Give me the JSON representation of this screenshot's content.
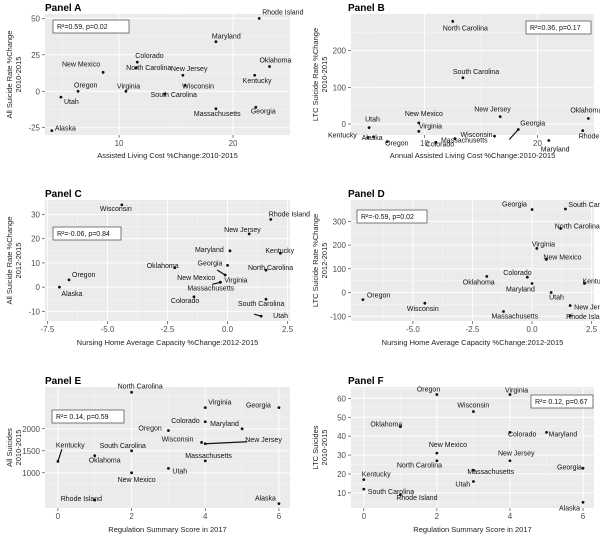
{
  "figure": {
    "background": "#ffffff",
    "panel_background": "#ebebeb",
    "point_color": "#111111"
  },
  "chart_data": [
    {
      "type": "scatter",
      "title": "Panel A",
      "xlabel": "Assisted Living Cost %Change:2010-2015",
      "ylabel": [
        "All Suicide Rate %Change",
        "2010-2015"
      ],
      "xlim": [
        3.5,
        25
      ],
      "ylim": [
        -30,
        53
      ],
      "xticks": [
        10,
        20
      ],
      "yticks": [
        -25,
        0,
        25,
        50
      ],
      "stat": "R²=0.59, p=0.02",
      "stat_side": "left",
      "points": [
        {
          "name": "Rhode Island",
          "x": 22.3,
          "y": 50
        },
        {
          "name": "Maryland",
          "x": 18.5,
          "y": 34
        },
        {
          "name": "Colorado",
          "x": 11.6,
          "y": 20
        },
        {
          "name": "New Mexico",
          "x": 8.6,
          "y": 13
        },
        {
          "name": "North Carolina",
          "x": 11.5,
          "y": 16
        },
        {
          "name": "Oklahoma",
          "x": 23.2,
          "y": 17
        },
        {
          "name": "New Jersey",
          "x": 15.6,
          "y": 11
        },
        {
          "name": "Kentucky",
          "x": 21.9,
          "y": 11
        },
        {
          "name": "Wisconsin",
          "x": 15.8,
          "y": 4
        },
        {
          "name": "Oregon",
          "x": 6.4,
          "y": 0
        },
        {
          "name": "Virginia",
          "x": 10.6,
          "y": 0
        },
        {
          "name": "Utah",
          "x": 4.9,
          "y": -4
        },
        {
          "name": "South Carolina",
          "x": 14.0,
          "y": -2
        },
        {
          "name": "Massachusetts",
          "x": 18.5,
          "y": -12
        },
        {
          "name": "Georgia",
          "x": 22.0,
          "y": -11
        },
        {
          "name": "Alaska",
          "x": 4.1,
          "y": -27
        }
      ]
    },
    {
      "type": "scatter",
      "title": "Panel B",
      "xlabel": "Annual Assisted Living Cost %Change:2010-2015",
      "ylabel": [
        "LTC Suicide Rate %Change",
        "2010-2015"
      ],
      "xlim": [
        3.5,
        25
      ],
      "ylim": [
        -30,
        300
      ],
      "xticks": [
        10,
        20
      ],
      "yticks": [
        0,
        100,
        200
      ],
      "stat": "R²=0.36, p=0.17",
      "stat_side": "right",
      "points": [
        {
          "name": "North Carolina",
          "x": 12.5,
          "y": 280
        },
        {
          "name": "South Carolina",
          "x": 13.4,
          "y": 126
        },
        {
          "name": "New Mexico",
          "x": 9.5,
          "y": 3
        },
        {
          "name": "New Jersey",
          "x": 16.7,
          "y": 20
        },
        {
          "name": "Oklahoma",
          "x": 24.5,
          "y": 15
        },
        {
          "name": "Utah",
          "x": 5.1,
          "y": -10
        },
        {
          "name": "Virginia",
          "x": 9.5,
          "y": -20
        },
        {
          "name": "Georgia",
          "x": 18.3,
          "y": -15
        },
        {
          "name": "Alaska",
          "x": 5.5,
          "y": -35
        },
        {
          "name": "Wisconsin",
          "x": 16.2,
          "y": -33
        },
        {
          "name": "Rhode Island",
          "x": 24.0,
          "y": -18
        },
        {
          "name": "Oregon",
          "x": 6.7,
          "y": -48
        },
        {
          "name": "Colorado",
          "x": 11.0,
          "y": -50
        },
        {
          "name": "Massachusetts",
          "x": 12.7,
          "y": -40
        },
        {
          "name": "Maryland",
          "x": 21.0,
          "y": -45
        },
        {
          "name": "Kentucky",
          "x": 5.0,
          "y": -37
        }
      ]
    },
    {
      "type": "scatter",
      "title": "Panel C",
      "xlabel": "Nursing Home Average Capacity %Change:2012-2015",
      "ylabel": [
        "All Suicide Rate %Change",
        "2012-2015"
      ],
      "xlim": [
        -7.6,
        2.6
      ],
      "ylim": [
        -14,
        36
      ],
      "xticks": [
        -7.5,
        -5.0,
        -2.5,
        0.0,
        2.5
      ],
      "tick_decimals": 1,
      "yticks": [
        -10,
        0,
        10,
        20,
        30
      ],
      "stat": "R²=-0.06, p=0.84",
      "stat_side": "left",
      "points": [
        {
          "name": "Wisconsin",
          "x": -4.4,
          "y": 34
        },
        {
          "name": "Rhode Island",
          "x": 1.8,
          "y": 28
        },
        {
          "name": "New Jersey",
          "x": 0.9,
          "y": 22
        },
        {
          "name": "Maryland",
          "x": 0.1,
          "y": 15
        },
        {
          "name": "Kentucky",
          "x": 2.2,
          "y": 14
        },
        {
          "name": "Oklahoma",
          "x": -2.2,
          "y": 8
        },
        {
          "name": "Georgia",
          "x": 0.0,
          "y": 9
        },
        {
          "name": "New Mexico",
          "x": -0.1,
          "y": 5
        },
        {
          "name": "North Carolina",
          "x": 1.6,
          "y": 7
        },
        {
          "name": "Virginia",
          "x": -0.3,
          "y": 2
        },
        {
          "name": "Massachusetts",
          "x": -0.3,
          "y": 2
        },
        {
          "name": "Oregon",
          "x": -6.6,
          "y": 3
        },
        {
          "name": "Alaska",
          "x": -7.0,
          "y": 0
        },
        {
          "name": "Colorado",
          "x": -1.4,
          "y": -4
        },
        {
          "name": "South Carolina",
          "x": 1.6,
          "y": -5
        },
        {
          "name": "Utah",
          "x": 1.4,
          "y": -12
        }
      ]
    },
    {
      "type": "scatter",
      "title": "Panel D",
      "xlabel": "Nursing Home Average Capacity %Change:2012-2015",
      "ylabel": [
        "LTC Suicide Rate %Change",
        "2012-2015"
      ],
      "xlim": [
        -7.6,
        2.6
      ],
      "ylim": [
        -120,
        390
      ],
      "xticks": [
        -5.0,
        -2.5,
        0.0,
        2.5
      ],
      "tick_decimals": 1,
      "yticks": [
        -100,
        0,
        100,
        200,
        300
      ],
      "stat": "R²=-0.59, p=0.02",
      "stat_side": "left",
      "points": [
        {
          "name": "Georgia",
          "x": 0.0,
          "y": 350
        },
        {
          "name": "South Carolina",
          "x": 1.4,
          "y": 352
        },
        {
          "name": "North Carolina",
          "x": 1.2,
          "y": 270
        },
        {
          "name": "Virginia",
          "x": 0.2,
          "y": 186
        },
        {
          "name": "New Mexico",
          "x": 0.6,
          "y": 140
        },
        {
          "name": "Oklahoma",
          "x": -1.9,
          "y": 68
        },
        {
          "name": "Colorado",
          "x": -0.2,
          "y": 65
        },
        {
          "name": "Maryland",
          "x": 0.0,
          "y": 38
        },
        {
          "name": "Kentucky",
          "x": 2.2,
          "y": 38
        },
        {
          "name": "Utah",
          "x": 0.8,
          "y": 0
        },
        {
          "name": "Oregon",
          "x": -7.1,
          "y": -30
        },
        {
          "name": "Wisconsin",
          "x": -4.5,
          "y": -45
        },
        {
          "name": "Massachusetts",
          "x": -1.2,
          "y": -80
        },
        {
          "name": "New Jersey",
          "x": 1.6,
          "y": -55
        },
        {
          "name": "Rhode Island",
          "x": 1.6,
          "y": -98
        }
      ]
    },
    {
      "type": "scatter",
      "title": "Panel E",
      "xlabel": "Regulation Summary Score in 2017",
      "ylabel": [
        "All Suicides",
        "2010-2015"
      ],
      "xlim": [
        -0.35,
        6.3
      ],
      "ylim": [
        200,
        2950
      ],
      "xticks": [
        0,
        2,
        4,
        6
      ],
      "yticks": [
        1000,
        1500,
        2000
      ],
      "stat": "R²= 0.14, p=0.59",
      "stat_side": "left",
      "points": [
        {
          "name": "North Carolina",
          "x": 2.0,
          "y": 2830
        },
        {
          "name": "Virginia",
          "x": 4.0,
          "y": 2480
        },
        {
          "name": "Georgia",
          "x": 6.0,
          "y": 2480
        },
        {
          "name": "Colorado",
          "x": 4.0,
          "y": 2160
        },
        {
          "name": "Maryland",
          "x": 5.0,
          "y": 2000
        },
        {
          "name": "Oregon",
          "x": 3.0,
          "y": 1960
        },
        {
          "name": "Wisconsin",
          "x": 3.9,
          "y": 1690
        },
        {
          "name": "New Jersey",
          "x": 4.0,
          "y": 1660
        },
        {
          "name": "Kentucky",
          "x": 0.0,
          "y": 1260
        },
        {
          "name": "South Carolina",
          "x": 2.0,
          "y": 1500
        },
        {
          "name": "Oklahoma",
          "x": 1.0,
          "y": 1390
        },
        {
          "name": "Massachusetts",
          "x": 4.0,
          "y": 1270
        },
        {
          "name": "Utah",
          "x": 3.0,
          "y": 1100
        },
        {
          "name": "New Mexico",
          "x": 2.0,
          "y": 1000
        },
        {
          "name": "Rhode Island",
          "x": 1.0,
          "y": 380
        },
        {
          "name": "Alaska",
          "x": 6.0,
          "y": 300
        }
      ]
    },
    {
      "type": "scatter",
      "title": "Panel F",
      "xlabel": "Regulation Summary Score in 2017",
      "ylabel": [
        "LTC Suicides",
        "2010-2015"
      ],
      "xlim": [
        -0.35,
        6.3
      ],
      "ylim": [
        2,
        66
      ],
      "xticks": [
        0,
        2,
        4,
        6
      ],
      "yticks": [
        10,
        20,
        30,
        40,
        50,
        60
      ],
      "stat": "R²= 0.12, p=0.67",
      "stat_side": "right",
      "points": [
        {
          "name": "Oregon",
          "x": 2.0,
          "y": 62
        },
        {
          "name": "Virginia",
          "x": 4.0,
          "y": 62
        },
        {
          "name": "Wisconsin",
          "x": 3.0,
          "y": 53
        },
        {
          "name": "Oklahoma",
          "x": 1.0,
          "y": 45
        },
        {
          "name": "Colorado",
          "x": 4.0,
          "y": 42
        },
        {
          "name": "Maryland",
          "x": 5.0,
          "y": 42
        },
        {
          "name": "New Mexico",
          "x": 2.0,
          "y": 31
        },
        {
          "name": "Georgia",
          "x": 6.0,
          "y": 23
        },
        {
          "name": "North Carolina",
          "x": 2.0,
          "y": 27
        },
        {
          "name": "New Jersey",
          "x": 4.0,
          "y": 27
        },
        {
          "name": "Massachusetts",
          "x": 3.0,
          "y": 22
        },
        {
          "name": "Kentucky",
          "x": 0.0,
          "y": 17
        },
        {
          "name": "Utah",
          "x": 3.0,
          "y": 16
        },
        {
          "name": "South Carolina",
          "x": 0.0,
          "y": 12
        },
        {
          "name": "Rhode Island",
          "x": 1.0,
          "y": 9
        },
        {
          "name": "Alaska",
          "x": 6.0,
          "y": 5
        }
      ]
    }
  ]
}
